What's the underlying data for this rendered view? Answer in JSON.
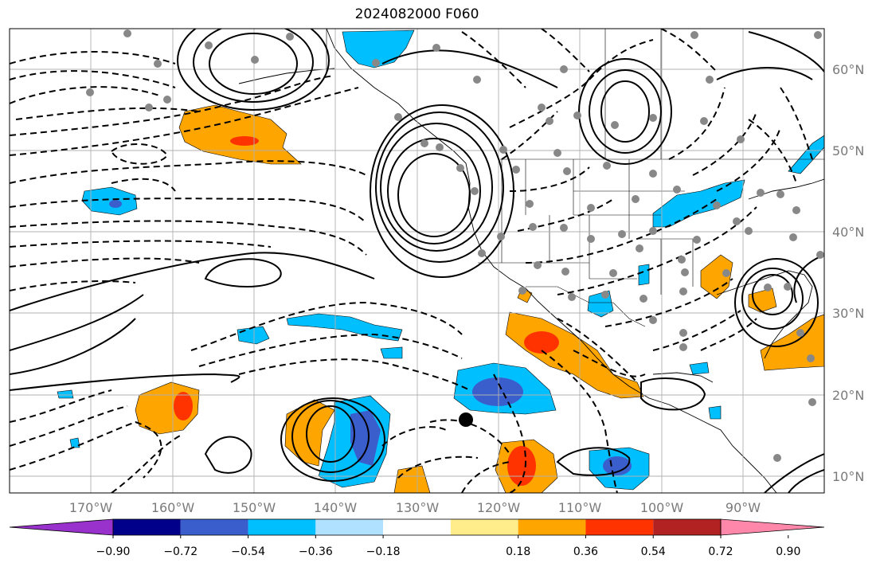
{
  "title": "2024082000 F060",
  "lat_labels": [
    "60°N",
    "50°N",
    "40°N",
    "30°N",
    "20°N",
    "10°N"
  ],
  "lon_labels": [
    "170°W",
    "160°W",
    "150°W",
    "140°W",
    "130°W",
    "120°W",
    "110°W",
    "100°W",
    "90°W"
  ],
  "colorbar": {
    "ticks": [
      "−0.90",
      "−0.72",
      "−0.54",
      "−0.36",
      "−0.18",
      "0.18",
      "0.36",
      "0.54",
      "0.72",
      "0.90"
    ],
    "colors": [
      "#9932cc",
      "#00008b",
      "#3a5fcd",
      "#00bfff",
      "#b0e2ff",
      "#ffffff",
      "#ffec8b",
      "#ffa500",
      "#ff3300",
      "#b22222",
      "#ff88aa"
    ]
  },
  "colors": {
    "neg_strong": "#3a5fcd",
    "neg_mid": "#00bfff",
    "pos_mid": "#ffa500",
    "pos_strong": "#ff3300",
    "station_dot": "#888888",
    "grid": "#b0b0b0"
  }
}
